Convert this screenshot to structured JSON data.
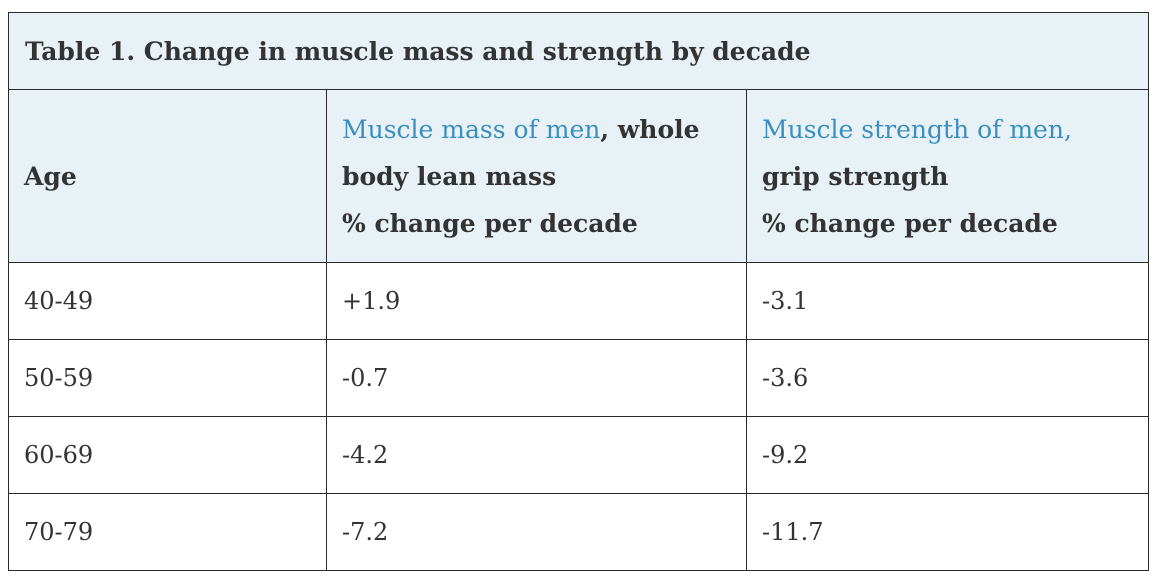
{
  "table": {
    "caption": "Table 1. Change in muscle mass and strength by decade",
    "headers": {
      "age": "Age",
      "mass": {
        "highlight": "Muscle mass of men",
        "rest": ", whole body lean mass",
        "unit": "% change per decade"
      },
      "strength": {
        "highlight": "Muscle strength of men,",
        "rest": " grip strength",
        "unit": "% change per decade"
      }
    },
    "rows": [
      {
        "age": "40-49",
        "mass": "+1.9",
        "strength": "-3.1"
      },
      {
        "age": "50-59",
        "mass": "-0.7",
        "strength": "-3.6"
      },
      {
        "age": "60-69",
        "mass": "-4.2",
        "strength": "-9.2"
      },
      {
        "age": "70-79",
        "mass": "-7.2",
        "strength": "-11.7"
      }
    ]
  }
}
